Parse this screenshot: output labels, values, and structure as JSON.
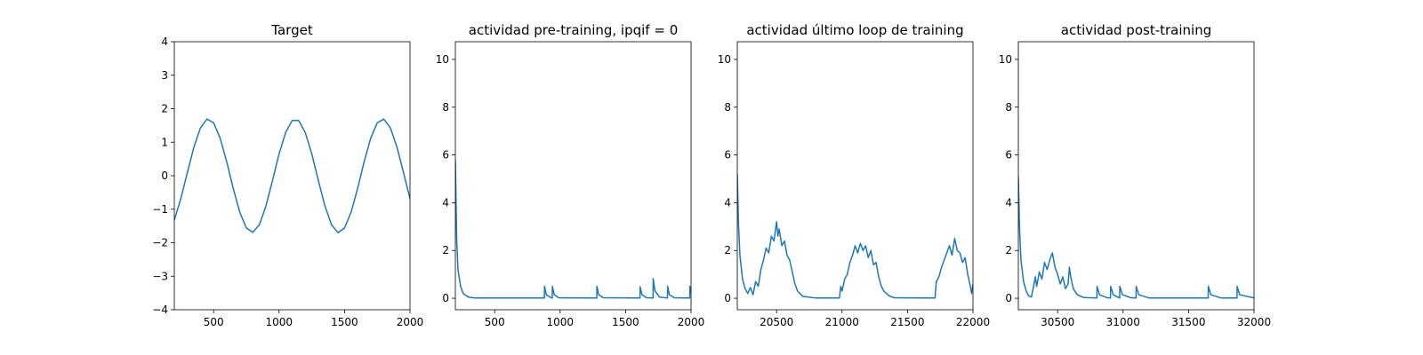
{
  "chart_data": [
    {
      "type": "line",
      "title": "Target",
      "color": "#1f77b4",
      "x": [
        200,
        250,
        300,
        350,
        400,
        450,
        500,
        550,
        600,
        650,
        700,
        750,
        800,
        850,
        900,
        950,
        1000,
        1050,
        1100,
        1150,
        1200,
        1250,
        1300,
        1350,
        1400,
        1450,
        1500,
        1550,
        1600,
        1650,
        1700,
        1750,
        1800,
        1850,
        1900,
        1950,
        2000
      ],
      "values": [
        -1.32,
        -0.68,
        0.1,
        0.86,
        1.43,
        1.69,
        1.58,
        1.12,
        0.42,
        -0.38,
        -1.09,
        -1.56,
        -1.69,
        -1.46,
        -0.9,
        -0.14,
        0.65,
        1.29,
        1.65,
        1.65,
        1.29,
        0.65,
        -0.14,
        -0.9,
        -1.46,
        -1.7,
        -1.56,
        -1.09,
        -0.38,
        0.42,
        1.12,
        1.58,
        1.69,
        1.43,
        0.86,
        0.1,
        -0.68
      ],
      "xlim": [
        200,
        2000
      ],
      "xticks": [
        500,
        1000,
        1500,
        2000
      ],
      "ylim": [
        -4,
        4
      ],
      "yticks": [
        {
          "value": -4,
          "label": "−4"
        },
        {
          "value": -3,
          "label": "−3"
        },
        {
          "value": -2,
          "label": "−2"
        },
        {
          "value": -1,
          "label": "−1"
        },
        0,
        1,
        2,
        3,
        4
      ]
    },
    {
      "type": "line",
      "title": "actividad pre-training, ipqif = 0",
      "color": "#1f77b4",
      "x": [
        200,
        210,
        220,
        240,
        260,
        300,
        350,
        880,
        881,
        895,
        930,
        940,
        941,
        955,
        990,
        1280,
        1281,
        1295,
        1330,
        1610,
        1611,
        1625,
        1660,
        1710,
        1711,
        1725,
        1760,
        1820,
        1821,
        1835,
        1870,
        1990,
        1991,
        2000
      ],
      "values": [
        5.8,
        2.5,
        1.2,
        0.5,
        0.2,
        0.05,
        0.01,
        0.01,
        0.5,
        0.15,
        0.02,
        0.01,
        0.5,
        0.15,
        0.02,
        0.01,
        0.5,
        0.15,
        0.02,
        0.01,
        0.48,
        0.15,
        0.02,
        0.01,
        0.82,
        0.3,
        0.05,
        0.01,
        0.5,
        0.15,
        0.02,
        0.01,
        0.5,
        0.2
      ],
      "xlim": [
        200,
        2000
      ],
      "xticks": [
        500,
        1000,
        1500,
        2000
      ],
      "ylim": [
        -0.48,
        10.74
      ],
      "yticks": [
        0,
        2,
        4,
        6,
        8,
        10
      ]
    },
    {
      "type": "line",
      "title": "actividad último loop de training",
      "color": "#1f77b4",
      "x": [
        20200,
        20210,
        20220,
        20240,
        20260,
        20280,
        20300,
        20320,
        20340,
        20360,
        20380,
        20400,
        20420,
        20440,
        20460,
        20480,
        20500,
        20510,
        20520,
        20540,
        20560,
        20580,
        20600,
        20620,
        20640,
        20660,
        20700,
        20800,
        20980,
        20990,
        21000,
        21020,
        21040,
        21060,
        21080,
        21100,
        21120,
        21140,
        21160,
        21180,
        21200,
        21220,
        21240,
        21260,
        21280,
        21300,
        21320,
        21360,
        21400,
        21710,
        21720,
        21740,
        21760,
        21780,
        21800,
        21820,
        21840,
        21860,
        21880,
        21900,
        21920,
        21940,
        21960,
        21980,
        21990,
        22000
      ],
      "values": [
        5.2,
        3.0,
        1.8,
        0.8,
        0.4,
        0.2,
        0.45,
        0.15,
        0.7,
        0.5,
        1.2,
        1.6,
        2.1,
        1.9,
        2.6,
        2.4,
        3.2,
        2.6,
        2.9,
        2.2,
        2.4,
        1.8,
        1.6,
        1.1,
        0.6,
        0.3,
        0.08,
        0.01,
        0.01,
        0.5,
        0.3,
        0.8,
        1.0,
        1.5,
        1.8,
        2.2,
        1.9,
        2.3,
        2.0,
        2.2,
        1.7,
        2.0,
        1.4,
        1.5,
        0.9,
        0.5,
        0.3,
        0.1,
        0.02,
        0.01,
        0.7,
        0.9,
        1.3,
        1.6,
        1.9,
        2.2,
        1.8,
        2.5,
        2.0,
        1.9,
        1.5,
        1.7,
        1.0,
        0.5,
        0.2,
        0.6
      ],
      "xlim": [
        20200,
        22000
      ],
      "xticks": [
        20500,
        21000,
        21500,
        22000
      ],
      "ylim": [
        -0.48,
        10.74
      ],
      "yticks": [
        0,
        2,
        4,
        6,
        8,
        10
      ]
    },
    {
      "type": "line",
      "title": "actividad post-training",
      "color": "#1f77b4",
      "x": [
        30200,
        30210,
        30220,
        30240,
        30260,
        30280,
        30300,
        30320,
        30330,
        30340,
        30360,
        30380,
        30400,
        30420,
        30440,
        30460,
        30480,
        30500,
        30520,
        30540,
        30560,
        30580,
        30590,
        30600,
        30620,
        30650,
        30700,
        30800,
        30801,
        30820,
        30880,
        30904,
        30905,
        30925,
        30970,
        30974,
        30975,
        30995,
        31060,
        31099,
        31100,
        31120,
        31200,
        31650,
        31651,
        31670,
        31750,
        31870,
        31871,
        31890,
        32000
      ],
      "values": [
        5.1,
        2.8,
        1.6,
        0.7,
        0.3,
        0.1,
        0.05,
        0.6,
        0.9,
        0.5,
        1.1,
        0.8,
        1.5,
        1.2,
        1.6,
        1.9,
        1.3,
        1.0,
        0.6,
        0.9,
        0.4,
        0.6,
        1.3,
        0.9,
        0.4,
        0.15,
        0.03,
        0.01,
        0.5,
        0.15,
        0.02,
        0.01,
        0.5,
        0.15,
        0.02,
        0.01,
        0.5,
        0.15,
        0.02,
        0.01,
        0.5,
        0.15,
        0.01,
        0.01,
        0.5,
        0.15,
        0.01,
        0.01,
        0.5,
        0.15,
        0.01
      ],
      "xlim": [
        30200,
        32000
      ],
      "xticks": [
        30500,
        31000,
        31500,
        32000
      ],
      "ylim": [
        -0.48,
        10.74
      ],
      "yticks": [
        0,
        2,
        4,
        6,
        8,
        10
      ]
    }
  ]
}
